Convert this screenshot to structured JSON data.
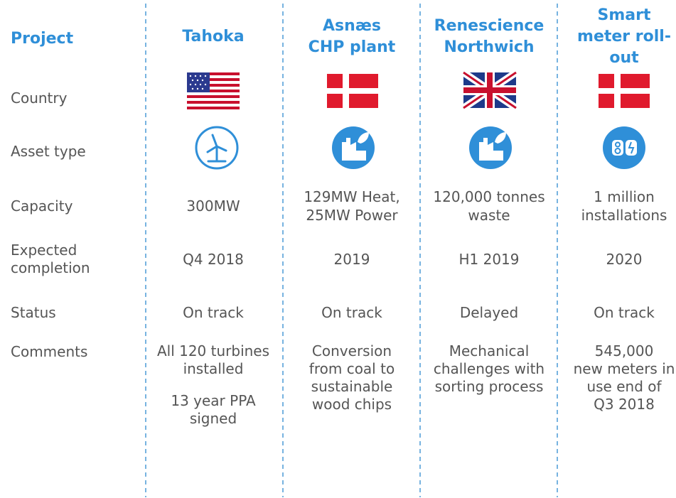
{
  "table": {
    "corner": "Project",
    "row_labels": [
      [
        "Country"
      ],
      [
        "Asset type"
      ],
      [
        "Capacity"
      ],
      [
        "Expected",
        "completion"
      ],
      [
        "Status"
      ],
      [
        "Comments"
      ]
    ],
    "columns": [
      {
        "project": [
          "Tahoka"
        ],
        "capacity": [
          "300MW"
        ],
        "completion": [
          "Q4 2018"
        ],
        "status": [
          "On track"
        ],
        "comments": [
          [
            "All 120 turbines",
            "installed"
          ],
          [
            "13 year PPA",
            "signed"
          ]
        ]
      },
      {
        "project": [
          "Asnæs",
          "CHP plant"
        ],
        "capacity": [
          "129MW Heat,",
          "25MW Power"
        ],
        "completion": [
          "2019"
        ],
        "status": [
          "On track"
        ],
        "comments": [
          [
            "Conversion",
            "from coal to",
            "sustainable",
            "wood chips"
          ]
        ]
      },
      {
        "project": [
          "Renescience",
          "Northwich"
        ],
        "capacity": [
          "120,000 tonnes",
          "waste"
        ],
        "completion": [
          "H1 2019"
        ],
        "status": [
          "Delayed"
        ],
        "comments": [
          [
            "Mechanical",
            "challenges with",
            "sorting process"
          ]
        ]
      },
      {
        "project": [
          "Smart",
          "meter roll-",
          "out"
        ],
        "capacity": [
          "1 million",
          "installations"
        ],
        "completion": [
          "2020"
        ],
        "status": [
          "On track"
        ],
        "comments": [
          [
            "545,000",
            "new meters in",
            "use end of",
            "Q3 2018"
          ]
        ]
      }
    ]
  }
}
